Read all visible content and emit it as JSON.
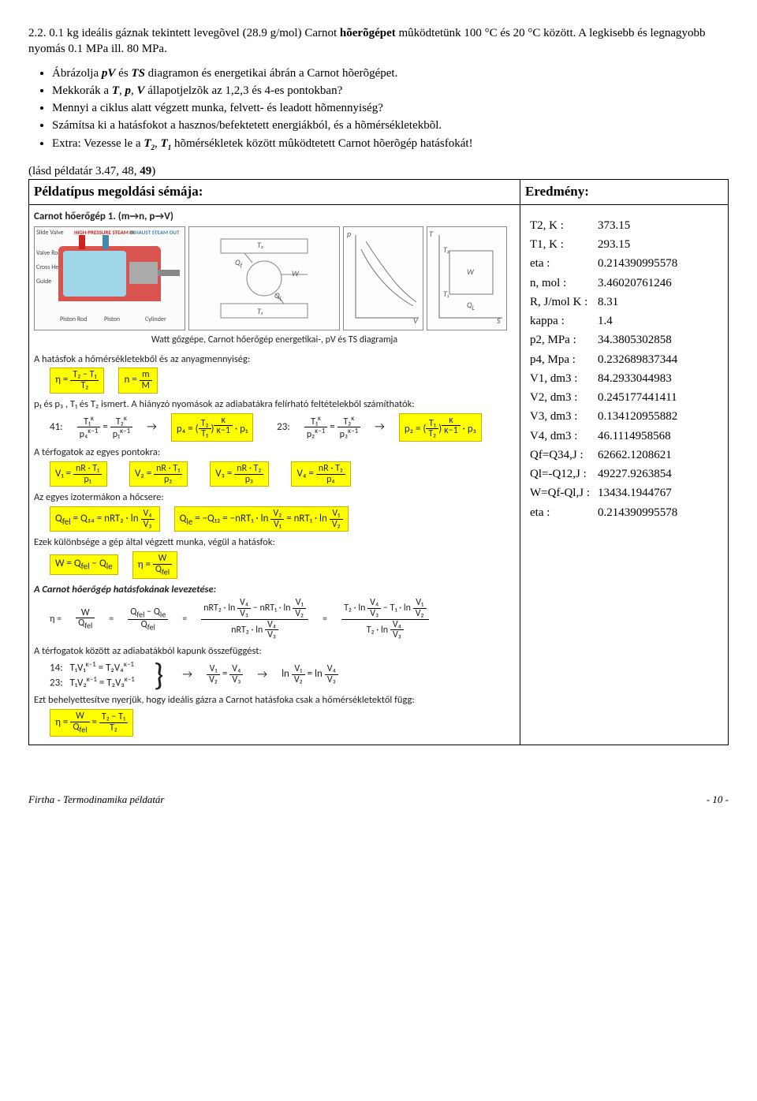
{
  "problem": {
    "number": "2.2.",
    "text_a": "0.1 kg ideális gáznak tekintett levegõvel (28.9 g/mol) Carnot ",
    "bold1": "hõerõgépet",
    "text_b": " mûködtetünk 100 °C és 20 °C között. A legkisebb és legnagyobb nyomás 0.1 MPa ill. 80 MPa."
  },
  "bullets": [
    {
      "pre": "Ábrázolja ",
      "b": "pV",
      "mid": " és ",
      "b2": "TS",
      "post": " diagramon és energetikai ábrán a Carnot hõerõgépet."
    },
    {
      "pre": "Mekkorák a ",
      "b": "T",
      "mid": ", ",
      "b2": "p",
      "mid2": ", ",
      "b3": "V",
      "post": " állapotjelzõk az 1,2,3 és 4-es pontokban?"
    },
    {
      "plain": "Mennyi a ciklus alatt végzett munka, felvett- és leadott hõmennyiség?"
    },
    {
      "plain": "Számítsa ki a hatásfokot a hasznos/befektetett energiákból, és a hõmérsékletekbõl."
    },
    {
      "pre": "Extra: Vezesse le a ",
      "b": "T",
      "sub": "2",
      "mid": ", ",
      "b2": "T",
      "sub2": "1",
      "post": " hõmérsékletek között mûködtetett Carnot hõerõgép hatásfokát!"
    }
  ],
  "seealso": "(lásd példatár 3.47, 48, ",
  "seealso_b": "49",
  "seealso_end": ")",
  "headers": {
    "left": "Példatípus megoldási sémája:",
    "right": "Eredmény:"
  },
  "solution": {
    "title": "Carnot hőerőgép 1. (m→n, p→V)",
    "engine_labels": {
      "slide": "Slide Valve",
      "hp": "HIGH-PRESSURE STEAM IN",
      "ex": "EXHAUST STEAM OUT",
      "valve": "Valve Rod",
      "cross": "Cross Head",
      "guide": "Guide",
      "piston": "Piston",
      "rod": "Piston Rod",
      "cyl": "Cylinder"
    },
    "caption": "Watt gőzgépe,  Carnot hőerőgép energetikai-, pV és TS diagramja",
    "p1": "A hatásfok a hőmérsékletekből és az anyagmennyiség:",
    "eq_eta_tt": "η = (T₂ − T₁) / T₂",
    "eq_n": "n = m / M",
    "p2_a": "p₁ és p₃ , T₁ és T₂ ismert. A hiányzó nyomások az adiabatákra felírható feltételekből számíthatók:",
    "line41": "41:",
    "line23": "23:",
    "p3": "A térfogatok az egyes pontokra:",
    "p4": "Az egyes izotermákon a hőcsere:",
    "p5": "Ezek különbsége a gép által végzett munka, végül a hatásfok:",
    "p6": "A Carnot hőerőgép hatásfokának levezetése:",
    "p7": "A térfogatok között az adiabatákból kapunk összefüggést:",
    "line14": "14:",
    "line23b": "23:",
    "p8": "Ezt behelyettesítve nyerjük, hogy ideális gázra a Carnot hatásfoka csak a hőmérsékletektől függ:"
  },
  "results": [
    {
      "label": "T2, K :",
      "value": "373.15"
    },
    {
      "label": "T1, K :",
      "value": "293.15"
    },
    {
      "label": "eta :",
      "value": "0.214390995578"
    },
    {
      "label": "n, mol :",
      "value": "3.46020761246"
    },
    {
      "label": "R, J/mol K :",
      "value": "8.31"
    },
    {
      "label": "kappa :",
      "value": "1.4"
    },
    {
      "label": "p2, MPa :",
      "value": "34.3805302858"
    },
    {
      "label": "p4, Mpa :",
      "value": "0.232689837344"
    },
    {
      "label": "V1, dm3 :",
      "value": "84.2933044983"
    },
    {
      "label": "V2, dm3 :",
      "value": "0.245177441411"
    },
    {
      "label": "V3, dm3 :",
      "value": "0.134120955882"
    },
    {
      "label": "V4, dm3 :",
      "value": "46.1114958568"
    },
    {
      "label": "Qf=Q34,J :",
      "value": "62662.1208621"
    },
    {
      "label": "Ql=-Q12,J :",
      "value": "49227.9263854"
    },
    {
      "label": "W=Qf-Ql,J :",
      "value": "13434.1944767"
    },
    {
      "label": "eta :",
      "value": "0.214390995578"
    }
  ],
  "footer": {
    "left": "Firtha - Termodinamika példatár",
    "right": "- 10 -"
  }
}
